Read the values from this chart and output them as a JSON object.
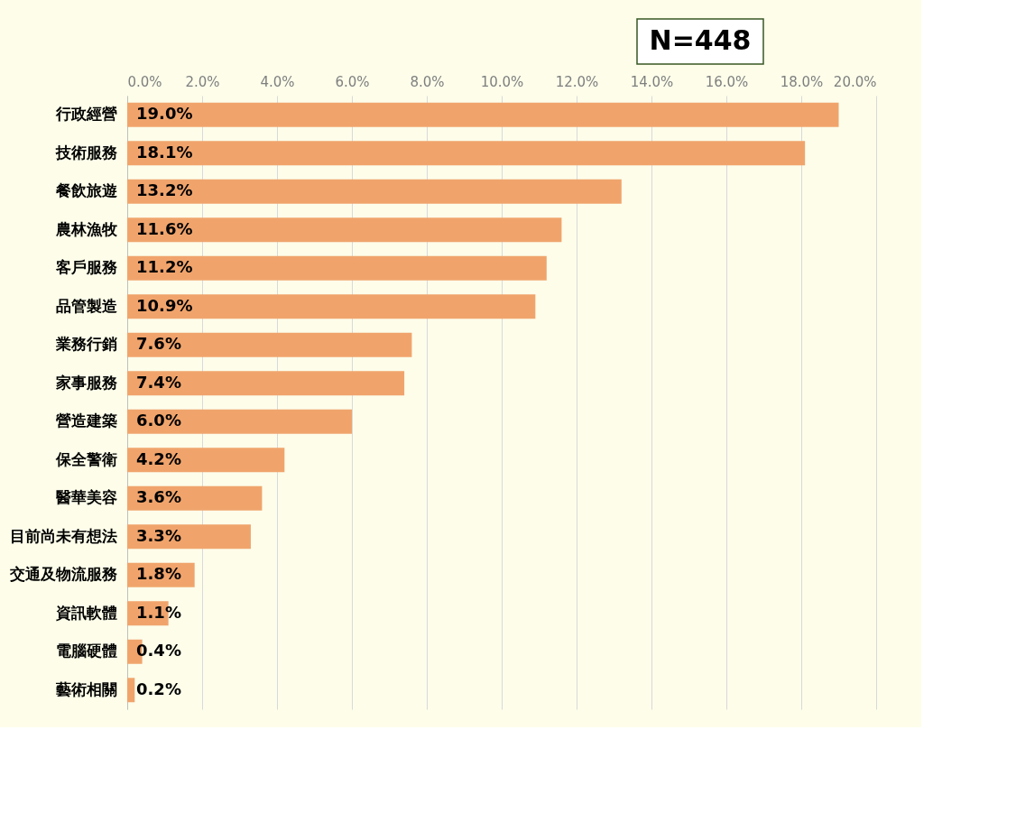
{
  "chart_data": {
    "type": "bar",
    "orientation": "horizontal",
    "categories": [
      "行政經營",
      "技術服務",
      "餐飲旅遊",
      "農林漁牧",
      "客戶服務",
      "品管製造",
      "業務行銷",
      "家事服務",
      "營造建築",
      "保全警衛",
      "醫華美容",
      "目前尚未有想法",
      "交通及物流服務",
      "資訊軟體",
      "電腦硬體",
      "藝術相關"
    ],
    "values": [
      19.0,
      18.1,
      13.2,
      11.6,
      11.2,
      10.9,
      7.6,
      7.4,
      6.0,
      4.2,
      3.6,
      3.3,
      1.8,
      1.1,
      0.4,
      0.2
    ],
    "value_labels": [
      "19.0%",
      "18.1%",
      "13.2%",
      "11.6%",
      "11.2%",
      "10.9%",
      "7.6%",
      "7.4%",
      "6.0%",
      "4.2%",
      "3.6%",
      "3.3%",
      "1.8%",
      "1.1%",
      "0.4%",
      "0.2%"
    ],
    "color": "#f0a46c",
    "xlim": [
      0,
      20
    ],
    "xticks": [
      {
        "value": 0,
        "label": "0.0%"
      },
      {
        "value": 2,
        "label": "2.0%"
      },
      {
        "value": 4,
        "label": "4.0%"
      },
      {
        "value": 6,
        "label": "6.0%"
      },
      {
        "value": 8,
        "label": "8.0%"
      },
      {
        "value": 10,
        "label": "10.0%"
      },
      {
        "value": 12,
        "label": "12.0%"
      },
      {
        "value": 14,
        "label": "14.0%"
      },
      {
        "value": 16,
        "label": "16.0%"
      },
      {
        "value": 18,
        "label": "18.0%"
      },
      {
        "value": 20,
        "label": "20.0%"
      }
    ],
    "grid": "x",
    "annotations": [
      "N=448"
    ]
  }
}
